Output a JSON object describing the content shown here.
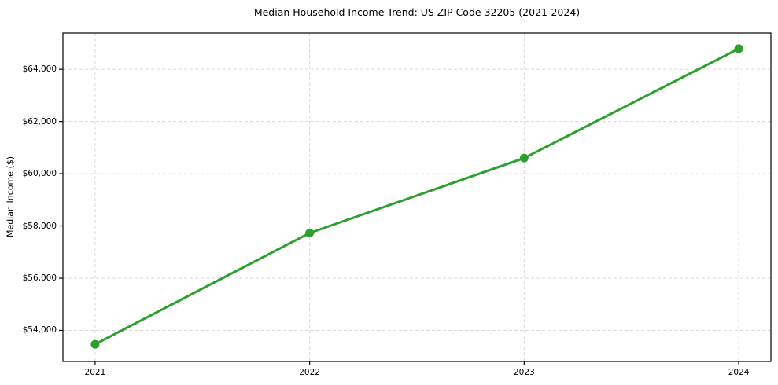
{
  "chart_data": {
    "type": "line",
    "title": "Median Household Income Trend: US ZIP Code 32205 (2021-2024)",
    "xlabel": "",
    "ylabel": "Median Income ($)",
    "x": [
      2021,
      2022,
      2023,
      2024
    ],
    "x_tick_labels": [
      "2021",
      "2022",
      "2023",
      "2024"
    ],
    "series": [
      {
        "name": "Median Household Income",
        "values": [
          53470,
          57730,
          60600,
          64790
        ],
        "color": "#2ca02c",
        "marker": "circle",
        "line_width": 3,
        "marker_radius": 5.5
      }
    ],
    "y_ticks": [
      54000,
      56000,
      58000,
      60000,
      62000,
      64000
    ],
    "y_tick_labels": [
      "$54,000",
      "$56,000",
      "$58,000",
      "$60,000",
      "$62,000",
      "$64,000"
    ],
    "xlim": [
      2020.85,
      2024.15
    ],
    "ylim": [
      52810,
      65390
    ],
    "grid": true,
    "grid_style": "dashed",
    "legend": "none",
    "colors": {
      "background": "#ffffff",
      "grid": "#d9d9d9",
      "spine": "#000000",
      "tick": "#000000",
      "text": "#000000"
    }
  }
}
